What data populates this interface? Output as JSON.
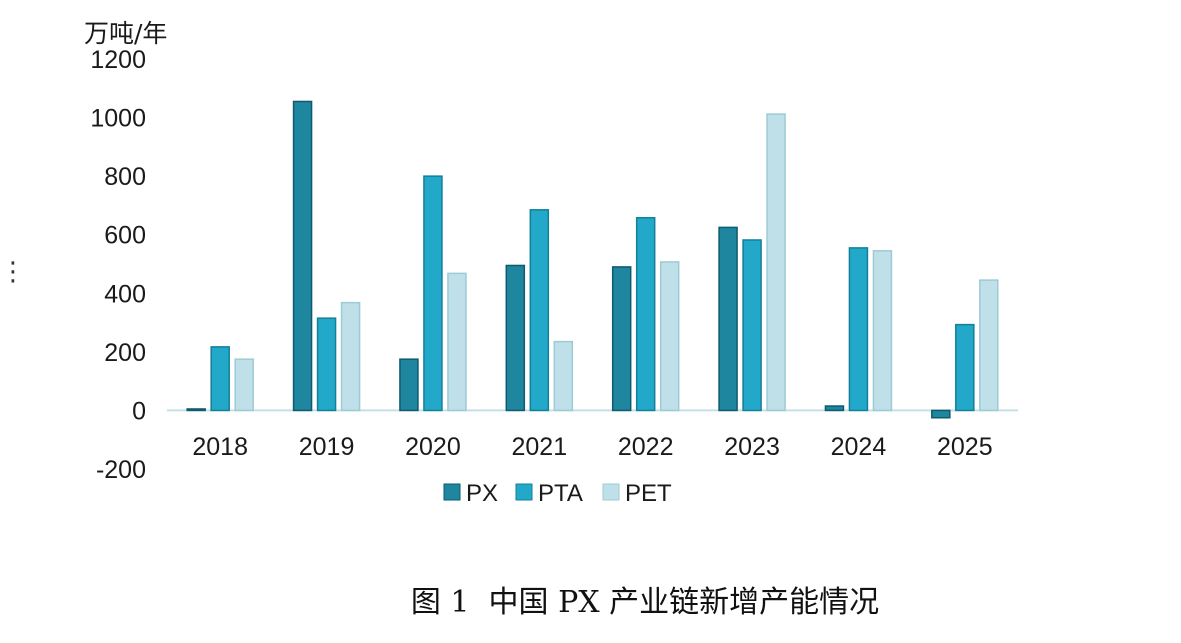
{
  "chart_data": {
    "type": "bar",
    "unit_label": "万吨/年",
    "categories": [
      "2018",
      "2019",
      "2020",
      "2021",
      "2022",
      "2023",
      "2024",
      "2025"
    ],
    "series": [
      {
        "name": "PX",
        "color": "#1f86a0",
        "values": [
          5,
          1055,
          175,
          495,
          490,
          625,
          15,
          -25
        ]
      },
      {
        "name": "PTA",
        "color": "#22a9c9",
        "values": [
          217,
          315,
          800,
          685,
          658,
          582,
          555,
          293
        ]
      },
      {
        "name": "PET",
        "color": "#bfe0e8",
        "values": [
          175,
          368,
          468,
          235,
          507,
          1012,
          545,
          445
        ]
      }
    ],
    "y_ticks": [
      1200,
      1000,
      800,
      600,
      400,
      200,
      0,
      -200
    ],
    "ylim": [
      -200,
      1200
    ],
    "legend_position": "bottom",
    "caption": "图 1  中国 PX 产业链新增产能情况"
  },
  "side_marker": "⋮"
}
